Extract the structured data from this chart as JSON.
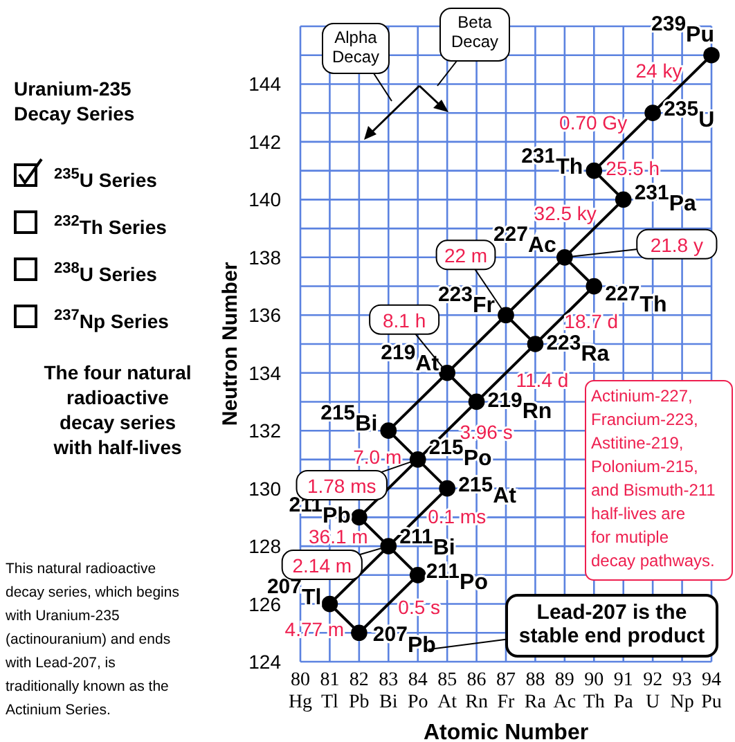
{
  "chart_data": {
    "type": "scatter",
    "title": "Uranium-235 Decay Series",
    "xlabel": "Atomic Number",
    "ylabel": "Neutron Number",
    "xlim": [
      80,
      94
    ],
    "ylim": [
      124,
      146
    ],
    "xticks": [
      {
        "value": 80,
        "label": "80\nHg"
      },
      {
        "value": 81,
        "label": "81\nTl"
      },
      {
        "value": 82,
        "label": "82\nPb"
      },
      {
        "value": 83,
        "label": "83\nBi"
      },
      {
        "value": 84,
        "label": "84\nPo"
      },
      {
        "value": 85,
        "label": "85\nAt"
      },
      {
        "value": 86,
        "label": "86\nRn"
      },
      {
        "value": 87,
        "label": "87\nFr"
      },
      {
        "value": 88,
        "label": "88\nRa"
      },
      {
        "value": 89,
        "label": "89\nAc"
      },
      {
        "value": 90,
        "label": "90\nTh"
      },
      {
        "value": 91,
        "label": "91\nPa"
      },
      {
        "value": 92,
        "label": "92\nU"
      },
      {
        "value": 93,
        "label": "93\nNp"
      },
      {
        "value": 94,
        "label": "94\nPu"
      }
    ],
    "yticks": [
      124,
      {
        "value": 125,
        "label": null
      },
      126,
      {
        "value": 127,
        "label": null
      },
      128,
      {
        "value": 129,
        "label": null
      },
      130,
      {
        "value": 131,
        "label": null
      },
      132,
      {
        "value": 133,
        "label": null
      },
      134,
      {
        "value": 135,
        "label": null
      },
      136,
      {
        "value": 137,
        "label": null
      },
      138,
      {
        "value": 139,
        "label": null
      },
      140,
      {
        "value": 141,
        "label": null
      },
      142,
      {
        "value": 143,
        "label": null
      },
      144,
      {
        "value": 145,
        "label": null
      },
      {
        "value": 146,
        "label": null
      }
    ],
    "grid": true,
    "line_style": "solid",
    "series": [
      {
        "marker": "circle",
        "color": "#000000",
        "x": [
          94,
          92,
          90,
          91,
          89,
          87,
          90,
          88,
          85,
          86,
          83,
          84,
          85,
          82,
          83,
          84,
          81,
          82
        ],
        "values": [
          145,
          143,
          141,
          140,
          138,
          136,
          137,
          135,
          134,
          133,
          132,
          131,
          130,
          129,
          128,
          127,
          126,
          125
        ]
      },
      {
        "type": "line",
        "marker": "none",
        "color": "#000000",
        "x": [
          94,
          92,
          90
        ],
        "values": [
          145,
          143,
          141
        ]
      },
      {
        "type": "line",
        "marker": "none",
        "color": "#000000",
        "x": [
          91,
          89,
          87,
          85,
          83
        ],
        "values": [
          140,
          138,
          136,
          134,
          132
        ]
      },
      {
        "type": "line",
        "marker": "none",
        "color": "#000000",
        "x": [
          90,
          88,
          86,
          84,
          82
        ],
        "values": [
          137,
          135,
          133,
          131,
          129
        ]
      },
      {
        "type": "line",
        "marker": "none",
        "color": "#000000",
        "x": [
          85,
          83,
          81
        ],
        "values": [
          130,
          128,
          126
        ]
      },
      {
        "type": "line",
        "marker": "none",
        "color": "#000000",
        "x": [
          84,
          82
        ],
        "values": [
          127,
          125
        ]
      },
      {
        "type": "line",
        "marker": "none",
        "color": "#000000",
        "x": [
          90,
          91
        ],
        "values": [
          141,
          140
        ]
      },
      {
        "type": "line",
        "marker": "none",
        "color": "#000000",
        "x": [
          89,
          90
        ],
        "values": [
          138,
          137
        ]
      },
      {
        "type": "line",
        "marker": "none",
        "color": "#000000",
        "x": [
          87,
          88
        ],
        "values": [
          136,
          135
        ]
      },
      {
        "type": "line",
        "marker": "none",
        "color": "#000000",
        "x": [
          85,
          86
        ],
        "values": [
          134,
          133
        ]
      },
      {
        "type": "line",
        "marker": "none",
        "color": "#000000",
        "x": [
          83,
          84,
          85
        ],
        "values": [
          132,
          131,
          130
        ]
      },
      {
        "type": "line",
        "marker": "none",
        "color": "#000000",
        "x": [
          82,
          83,
          84
        ],
        "values": [
          129,
          128,
          127
        ]
      },
      {
        "type": "line",
        "marker": "none",
        "color": "#000000",
        "x": [
          81,
          82
        ],
        "values": [
          126,
          125
        ]
      }
    ],
    "annotations": [
      "$^{235}$U Series",
      "$^{232}$Th Series",
      "$^{238}$U  Series",
      "$^{237}$Np Series",
      "The four natural radioactive decay series with half-lives",
      "This natural radioactive decay series, which begins with Uranium-235 (actinouranium) and ends with Lead-207, is traditionally known as the Actinium Series.",
      "Alpha Decay",
      "Beta Decay",
      "Actinium-227, Francium-223, Astitine-219, Polonium-215, and Bismuth-211 half-lives are for mutiple decay pathways.",
      "Lead-207 is the stable end product",
      {
        "text": "$^{239}$Pu",
        "x": 94,
        "y": 145
      },
      {
        "text": "$^{235}$U",
        "x": 92,
        "y": 143
      },
      {
        "text": "$^{231}$Th",
        "x": 90,
        "y": 141
      },
      {
        "text": "$^{231}$Pa",
        "x": 91,
        "y": 140
      },
      {
        "text": "$^{227}$Ac",
        "x": 89,
        "y": 138
      },
      {
        "text": "$^{223}$Fr",
        "x": 87,
        "y": 136
      },
      {
        "text": "$^{227}$Th",
        "x": 90,
        "y": 137
      },
      {
        "text": "$^{223}$Ra",
        "x": 88,
        "y": 135
      },
      {
        "text": "$^{219}$At",
        "x": 85,
        "y": 134
      },
      {
        "text": "$^{219}$Rn",
        "x": 86,
        "y": 133
      },
      {
        "text": "$^{215}$Bi",
        "x": 83,
        "y": 132
      },
      {
        "text": "$^{215}$Po",
        "x": 84,
        "y": 131
      },
      {
        "text": "$^{215}$At",
        "x": 85,
        "y": 130
      },
      {
        "text": "$^{211}$Pb",
        "x": 82,
        "y": 129
      },
      {
        "text": "$^{211}$Bi",
        "x": 83,
        "y": 128
      },
      {
        "text": "$^{211}$Po",
        "x": 84,
        "y": 127
      },
      {
        "text": "$^{207}$Tl",
        "x": 81,
        "y": 126
      },
      {
        "text": "$^{207}$Pb",
        "x": 82,
        "y": 125
      },
      {
        "text": "24 ky",
        "x": 94,
        "y": 145
      },
      {
        "text": "0.70 Gy",
        "x": 92,
        "y": 143
      },
      {
        "text": "25.5 h",
        "x": 90,
        "y": 141
      },
      {
        "text": "32.5 ky",
        "x": 91,
        "y": 140
      },
      {
        "text": "21.8 y",
        "x": 89,
        "y": 138
      },
      {
        "text": "22 m",
        "x": 87,
        "y": 136
      },
      {
        "text": "18.7 d",
        "x": 90,
        "y": 137
      },
      {
        "text": "8.1 h",
        "x": 85,
        "y": 134
      },
      {
        "text": "11.4 d",
        "x": 88,
        "y": 135
      },
      {
        "text": "3.96 s",
        "x": 86,
        "y": 133
      },
      {
        "text": "7.0 m",
        "x": 83,
        "y": 132
      },
      {
        "text": "1.78 ms",
        "x": 84,
        "y": 131
      },
      {
        "text": "0.1 ms",
        "x": 85,
        "y": 130
      },
      {
        "text": "36.1 m",
        "x": 82,
        "y": 129
      },
      {
        "text": "2.14 m",
        "x": 83,
        "y": 128
      },
      {
        "text": "0.5 s",
        "x": 84,
        "y": 127
      },
      {
        "text": "4.77 m",
        "x": 81,
        "y": 126
      }
    ]
  }
}
